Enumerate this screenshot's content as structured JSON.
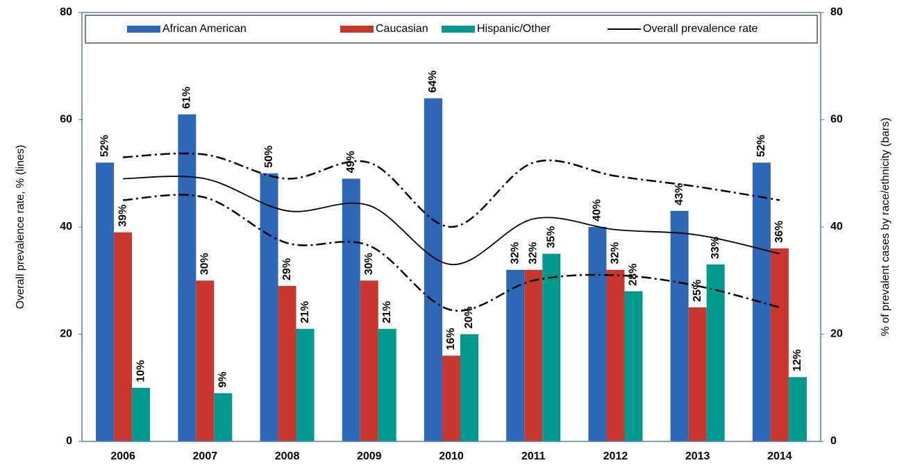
{
  "chart_data": {
    "type": "bar-line",
    "categories": [
      "2006",
      "2007",
      "2008",
      "2009",
      "2010",
      "2011",
      "2012",
      "2013",
      "2014"
    ],
    "ylabel": "Overall prevalence rate, % (lines)",
    "y2label": "% of prevalent cases by race/ethnicity (bars)",
    "ylim": [
      0,
      80
    ],
    "yticks": [
      0,
      20,
      40,
      60,
      80
    ],
    "y2lim": [
      0,
      80
    ],
    "y2ticks": [
      0,
      20,
      40,
      60,
      80
    ],
    "legend": "top",
    "series": [
      {
        "name": "African American",
        "kind": "bar",
        "axis": "y2",
        "color": "#2e67b5",
        "values": [
          52,
          61,
          50,
          49,
          64,
          32,
          40,
          43,
          52
        ],
        "value_labels": [
          "52%",
          "61%",
          "50%",
          "49%",
          "64%",
          "32%",
          "40%",
          "43%",
          "52%"
        ]
      },
      {
        "name": "Caucasian",
        "kind": "bar",
        "axis": "y2",
        "color": "#c8372d",
        "values": [
          39,
          30,
          29,
          30,
          16,
          32,
          32,
          25,
          36
        ],
        "value_labels": [
          "39%",
          "30%",
          "29%",
          "30%",
          "16%",
          "32%",
          "32%",
          "25%",
          "36%"
        ]
      },
      {
        "name": "Hispanic/Other",
        "kind": "bar",
        "axis": "y2",
        "color": "#00998f",
        "values": [
          10,
          9,
          21,
          21,
          20,
          35,
          28,
          33,
          12
        ],
        "value_labels": [
          "10%",
          "9%",
          "21%",
          "21%",
          "20%",
          "35%",
          "28%",
          "33%",
          "12%"
        ]
      },
      {
        "name": "Overall prevalence rate",
        "kind": "line",
        "color": "#000000",
        "values": [
          49,
          49,
          43,
          44,
          33,
          41.5,
          39.5,
          38.5,
          35
        ]
      },
      {
        "kind": "line",
        "dash": true,
        "color": "#000000",
        "values": [
          53,
          53.5,
          49,
          52,
          40,
          52,
          49.5,
          47.5,
          45
        ]
      },
      {
        "kind": "line",
        "dash": true,
        "color": "#000000",
        "values": [
          45,
          45.5,
          37,
          36.5,
          24.5,
          30,
          31,
          29,
          25
        ]
      }
    ]
  }
}
